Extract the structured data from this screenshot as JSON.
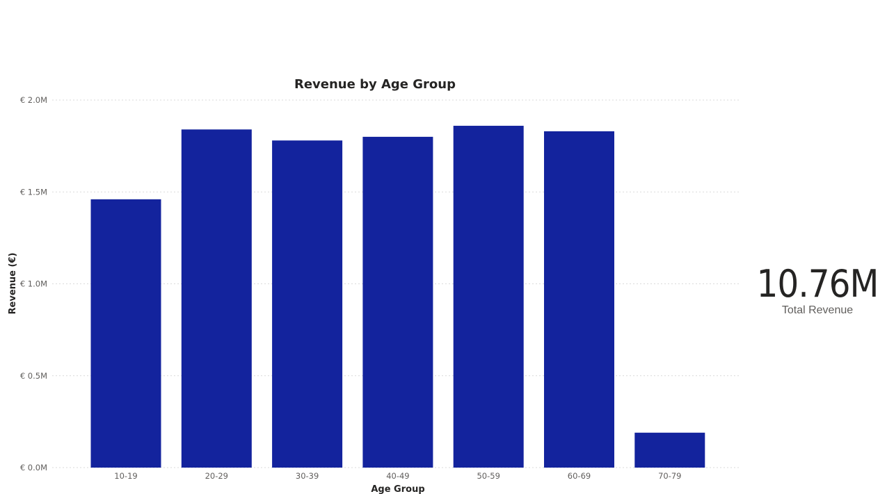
{
  "colors": {
    "bar": "#13239d",
    "text_dark": "#252423",
    "text_muted": "#605e5c",
    "gridline": "#d9d9d9"
  },
  "chart_data": {
    "type": "bar",
    "title": "Revenue by Age Group",
    "xlabel": "Age Group",
    "ylabel": "Revenue (€)",
    "categories": [
      "10-19",
      "20-29",
      "30-39",
      "40-49",
      "50-59",
      "60-69",
      "70-79"
    ],
    "values": [
      1.46,
      1.84,
      1.78,
      1.8,
      1.86,
      1.83,
      0.19
    ],
    "value_unit": "€ M",
    "ylim": [
      0,
      2.0
    ],
    "yticks": [
      0,
      0.5,
      1.0,
      1.5,
      2.0
    ],
    "ytick_labels": [
      "€ 0.0M",
      "€ 0.5M",
      "€ 1.0M",
      "€ 1.5M",
      "€ 2.0M"
    ],
    "grid": true,
    "legend": "none"
  },
  "kpi": {
    "value": "10.76M",
    "label": "Total Revenue"
  }
}
